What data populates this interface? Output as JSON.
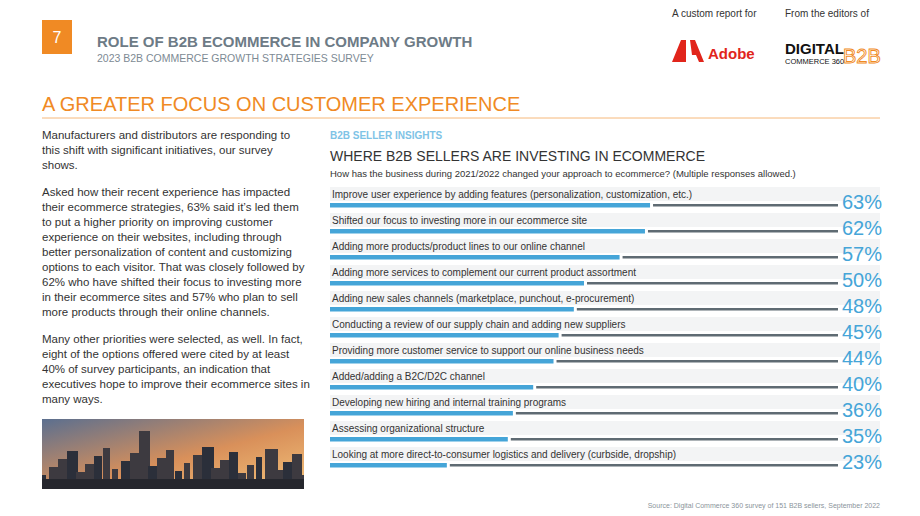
{
  "page": {
    "page_number": "7",
    "header": {
      "title": "ROLE OF B2B ECOMMERCE IN COMPANY GROWTH",
      "subtitle": "2023 B2B COMMERCE GROWTH STRATEGIES SURVEY",
      "report_for": "A custom report for",
      "sponsor": "Adobe",
      "editors_of": "From the editors of",
      "publisher": [
        "DIGITAL",
        "COMMERCE 360",
        "B2B"
      ]
    },
    "heading": "A GREATER FOCUS ON CUSTOMER EXPERIENCE",
    "body": [
      "Manufacturers and distributors are responding to this shift with significant initiatives, our survey shows.",
      "Asked how their recent experience has impacted their ecommerce strategies, 63% said it’s led them to put a higher priority on improving customer experience on their websites, including through better personalization of content and customizing options to each visitor. That was closely followed by 62% who have shifted their focus to investing more in their ecommerce sites and 57% who plan to sell more products through their online channels.",
      "Many other priorities were selected, as well. In fact, eight of the options offered were cited by at least 40% of survey participants, an indication that executives hope to improve their ecommerce sites in many ways."
    ]
  },
  "chart_data": {
    "type": "bar",
    "orientation": "horizontal",
    "kicker": "B2B SELLER INSIGHTS",
    "title": "WHERE B2B SELLERS ARE INVESTING IN ECOMMERCE",
    "subtitle": "How has the business during 2021/2022 changed your approach to ecommerce? (Multiple responses allowed.)",
    "categories": [
      "Improve user experience by adding features (personalization, customization, etc.)",
      "Shifted our focus to investing more in our ecommerce site",
      "Adding more products/product lines to our online channel",
      "Adding more services to complement our current product assortment",
      "Adding new sales channels (marketplace, punchout, e-procurement)",
      "Conducting a review of our supply chain and adding new suppliers",
      "Providing more customer service to support our online business needs",
      "Added/adding a B2C/D2C channel",
      "Developing new hiring and internal training programs",
      "Assessing organizational structure",
      "Looking at more direct-to-consumer logistics and delivery (curbside, dropship)"
    ],
    "values": [
      63,
      62,
      57,
      50,
      48,
      45,
      44,
      40,
      36,
      35,
      23
    ],
    "value_labels": [
      "63%",
      "62%",
      "57%",
      "50%",
      "48%",
      "45%",
      "44%",
      "40%",
      "36%",
      "35%",
      "23%"
    ],
    "color": "#45a5d8",
    "xlim": [
      0,
      100
    ],
    "tick_labels": false,
    "data_labels": true,
    "source": "Source: Digital Commerce 360 survey of 151 B2B sellers, September 2022"
  }
}
